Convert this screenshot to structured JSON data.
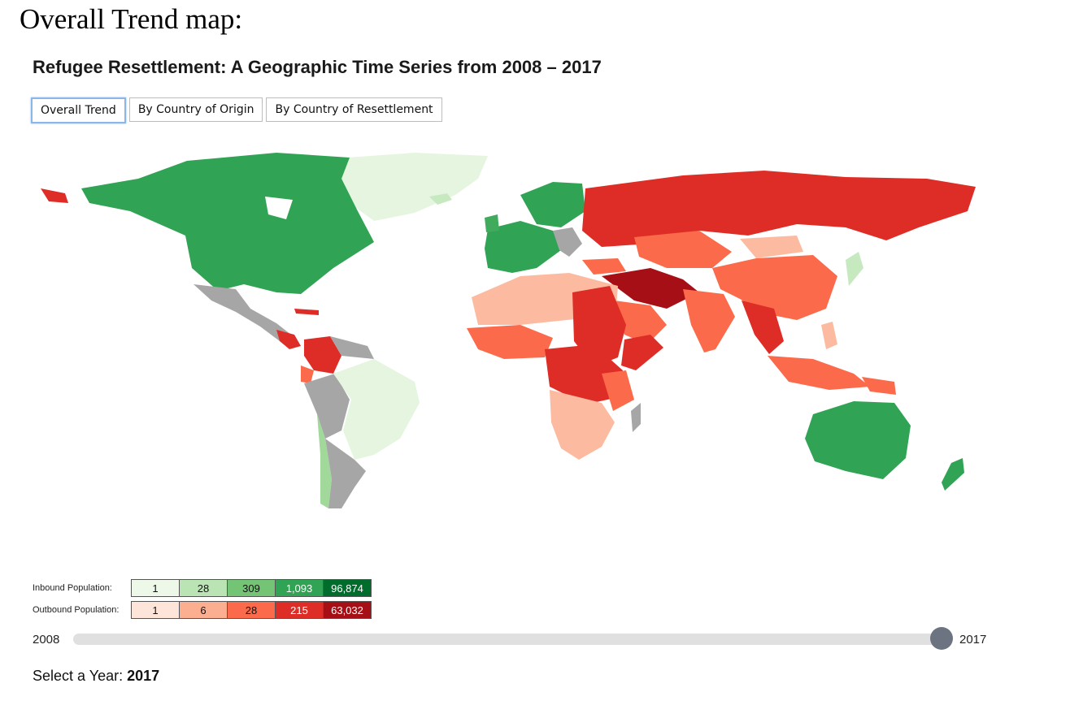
{
  "doc_heading": "Overall Trend map:",
  "app_title": "Refugee Resettlement: A Geographic Time Series from 2008 – 2017",
  "tabs": [
    {
      "label": "Overall Trend",
      "active": true
    },
    {
      "label": "By Country of Origin",
      "active": false
    },
    {
      "label": "By Country of Resettlement",
      "active": false
    }
  ],
  "map": {
    "colors": {
      "inbound_light": "#e5f5e0",
      "inbound_mid": "#74c476",
      "inbound_dark": "#31a354",
      "outbound_light": "#fcbba1",
      "outbound_mid": "#fb6a4a",
      "outbound_dark": "#de2d26",
      "no_data": "#a6a6a6"
    }
  },
  "legend": {
    "inbound": {
      "label": "Inbound Population:",
      "values": [
        "1",
        "28",
        "309",
        "1,093",
        "96,874"
      ],
      "colors": [
        "#edf8e9",
        "#bae4b3",
        "#74c476",
        "#31a354",
        "#006d2c"
      ]
    },
    "outbound": {
      "label": "Outbound Population:",
      "values": [
        "1",
        "6",
        "28",
        "215",
        "63,032"
      ],
      "colors": [
        "#fee5d9",
        "#fcae91",
        "#fb6a4a",
        "#de2d26",
        "#a50f15"
      ]
    }
  },
  "slider": {
    "min_label": "2008",
    "max_label": "2017",
    "value": 2017
  },
  "year_select": {
    "label": "Select a Year:",
    "value": "2017"
  }
}
